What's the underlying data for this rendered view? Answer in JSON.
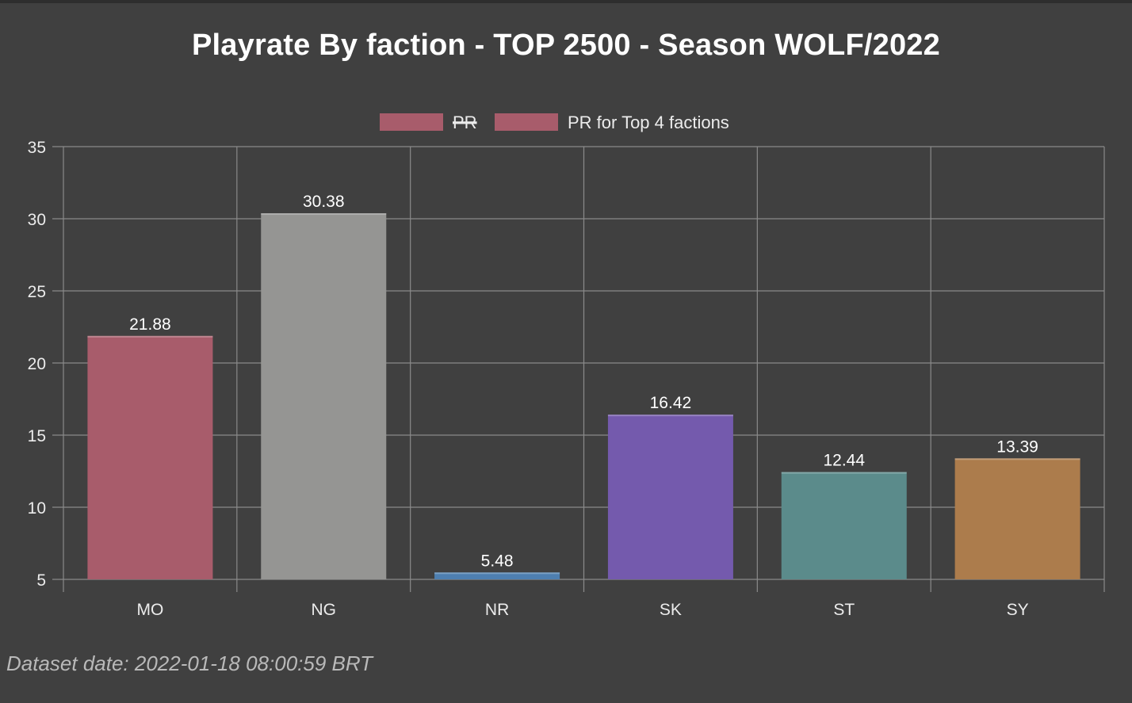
{
  "title": "Playrate By faction - TOP 2500 - Season WOLF/2022",
  "footer": "Dataset date: 2022-01-18 08:00:59 BRT",
  "chart_data": {
    "type": "bar",
    "title": "Playrate By faction - TOP 2500 - Season WOLF/2022",
    "xlabel": "",
    "ylabel": "",
    "categories": [
      "MO",
      "NG",
      "NR",
      "SK",
      "ST",
      "SY"
    ],
    "values": [
      21.88,
      30.38,
      5.48,
      16.42,
      12.44,
      13.39
    ],
    "value_labels": [
      "21.88",
      "30.38",
      "5.48",
      "16.42",
      "12.44",
      "13.39"
    ],
    "bar_colors": [
      "#a85c6b",
      "#959593",
      "#4e7fb0",
      "#745aad",
      "#5b8b8b",
      "#ac7c4c"
    ],
    "ylim": [
      5,
      35
    ],
    "yticks": [
      "5",
      "10",
      "15",
      "20",
      "25",
      "30",
      "35"
    ],
    "grid": true,
    "legend_placement": "top",
    "legend": [
      {
        "label": "PR",
        "color": "#a85c6b",
        "hidden": true
      },
      {
        "label": "PR for Top 4 factions",
        "color": "#a85c6b",
        "hidden": false
      }
    ]
  }
}
